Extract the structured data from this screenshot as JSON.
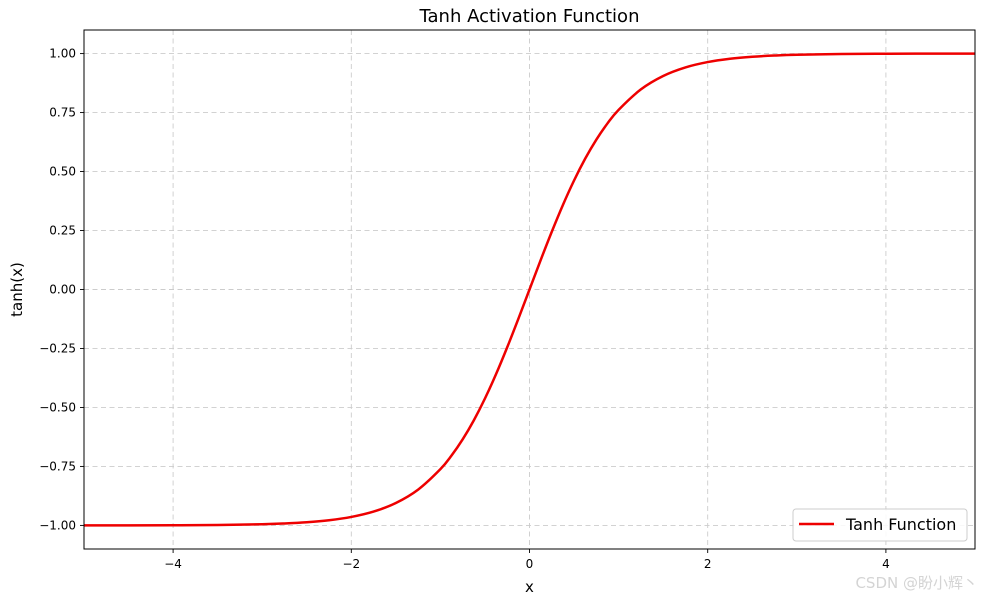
{
  "chart_data": {
    "type": "line",
    "title": "Tanh Activation Function",
    "xlabel": "x",
    "ylabel": "tanh(x)",
    "xlim": [
      -5,
      5
    ],
    "ylim": [
      -1.1,
      1.1
    ],
    "x_ticks": [
      -4,
      -2,
      0,
      2,
      4
    ],
    "x_tick_labels": [
      "−4",
      "−2",
      "0",
      "2",
      "4"
    ],
    "y_ticks": [
      -1.0,
      -0.75,
      -0.5,
      -0.25,
      0.0,
      0.25,
      0.5,
      0.75,
      1.0
    ],
    "y_tick_labels": [
      "−1.00",
      "−0.75",
      "−0.50",
      "−0.25",
      "0.00",
      "0.25",
      "0.50",
      "0.75",
      "1.00"
    ],
    "grid": true,
    "legend_position": "bottom-right",
    "series": [
      {
        "name": "Tanh Function",
        "color": "#ee0000",
        "x": [
          -5,
          -4.5,
          -4,
          -3.5,
          -3,
          -2.75,
          -2.5,
          -2.25,
          -2,
          -1.75,
          -1.5,
          -1.25,
          -1,
          -0.875,
          -0.75,
          -0.625,
          -0.5,
          -0.375,
          -0.25,
          -0.125,
          0,
          0.125,
          0.25,
          0.375,
          0.5,
          0.625,
          0.75,
          0.875,
          1,
          1.25,
          1.5,
          1.75,
          2,
          2.25,
          2.5,
          2.75,
          3,
          3.5,
          4,
          4.5,
          5
        ],
        "y": [
          -0.9999,
          -0.9998,
          -0.9993,
          -0.9982,
          -0.9951,
          -0.9918,
          -0.9866,
          -0.978,
          -0.964,
          -0.9414,
          -0.9051,
          -0.8483,
          -0.7616,
          -0.7039,
          -0.6351,
          -0.5546,
          -0.4621,
          -0.3584,
          -0.2449,
          -0.1244,
          0.0,
          0.1244,
          0.2449,
          0.3584,
          0.4621,
          0.5546,
          0.6351,
          0.7039,
          0.7616,
          0.8483,
          0.9051,
          0.9414,
          0.964,
          0.978,
          0.9866,
          0.9918,
          0.9951,
          0.9982,
          0.9993,
          0.9998,
          0.9999
        ]
      }
    ]
  },
  "watermark": "CSDN @盼小辉丶"
}
